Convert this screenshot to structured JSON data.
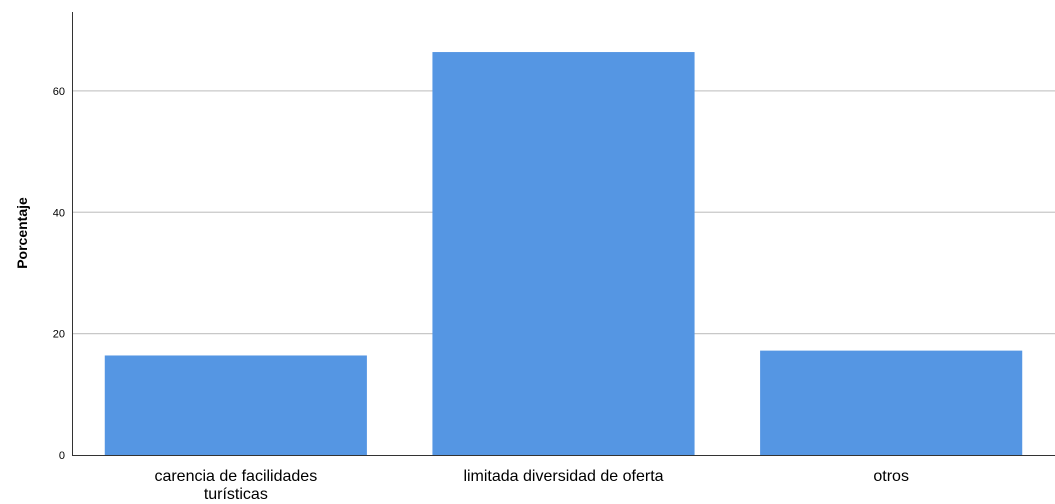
{
  "chart_data": {
    "type": "bar",
    "categories": [
      [
        "carencia de facilidades",
        "turísticas"
      ],
      [
        "limitada diversidad de oferta"
      ],
      [
        "otros"
      ]
    ],
    "values": [
      16.4,
      66.4,
      17.2
    ],
    "ylabel": "Porcentaje",
    "xlabel": "",
    "ylim": [
      0,
      73
    ],
    "yticks": [
      0,
      20,
      40,
      60
    ],
    "grid": true,
    "bar_color": "#5596e3"
  }
}
